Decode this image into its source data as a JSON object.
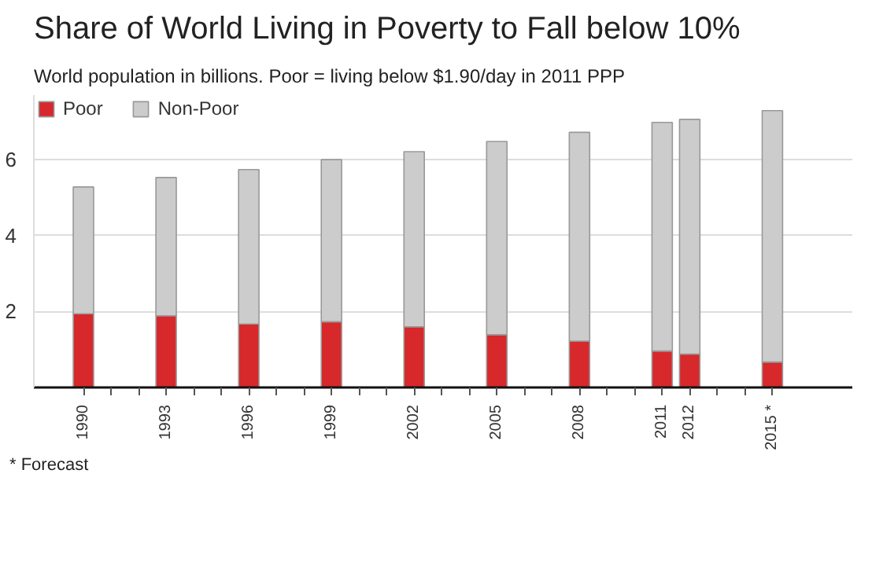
{
  "chart_data": {
    "type": "bar",
    "title": "Share of World Living in Poverty to Fall below 10%",
    "subtitle": "World population in billions. Poor = living below $1.90/day in 2011 PPP",
    "stacked": true,
    "x": [
      1990,
      1993,
      1996,
      1999,
      2002,
      2005,
      2008,
      2011,
      2012,
      2015
    ],
    "series": [
      {
        "name": "Poor",
        "color": "#d7282b",
        "values": [
          1.94,
          1.89,
          1.67,
          1.73,
          1.6,
          1.39,
          1.22,
          0.96,
          0.88,
          0.67
        ]
      },
      {
        "name": "Non-Poor",
        "color": "#cccccc",
        "values": [
          3.34,
          3.64,
          4.07,
          4.27,
          4.61,
          5.09,
          5.5,
          6.02,
          6.18,
          6.62
        ]
      }
    ],
    "xlim": [
      1988.2,
      2017.9
    ],
    "ylim": [
      0,
      7.7
    ],
    "xticks": [
      1990,
      {
        "value": 1991,
        "label": null
      },
      {
        "value": 1992,
        "label": null
      },
      1993,
      {
        "value": 1994,
        "label": null
      },
      {
        "value": 1995,
        "label": null
      },
      1996,
      {
        "value": 1997,
        "label": null
      },
      {
        "value": 1998,
        "label": null
      },
      1999,
      {
        "value": 2000,
        "label": null
      },
      {
        "value": 2001,
        "label": null
      },
      2002,
      {
        "value": 2003,
        "label": null
      },
      {
        "value": 2004,
        "label": null
      },
      2005,
      {
        "value": 2006,
        "label": null
      },
      {
        "value": 2007,
        "label": null
      },
      2008,
      {
        "value": 2009,
        "label": null
      },
      {
        "value": 2010,
        "label": null
      },
      2011,
      2012,
      {
        "value": 2013,
        "label": null
      },
      {
        "value": 2014,
        "label": null
      },
      {
        "value": 2015,
        "label": "2015 *"
      }
    ],
    "yticks": [
      2,
      4,
      6
    ],
    "grid": "y",
    "legend": "top left",
    "annotations": [
      "* Forecast"
    ]
  }
}
